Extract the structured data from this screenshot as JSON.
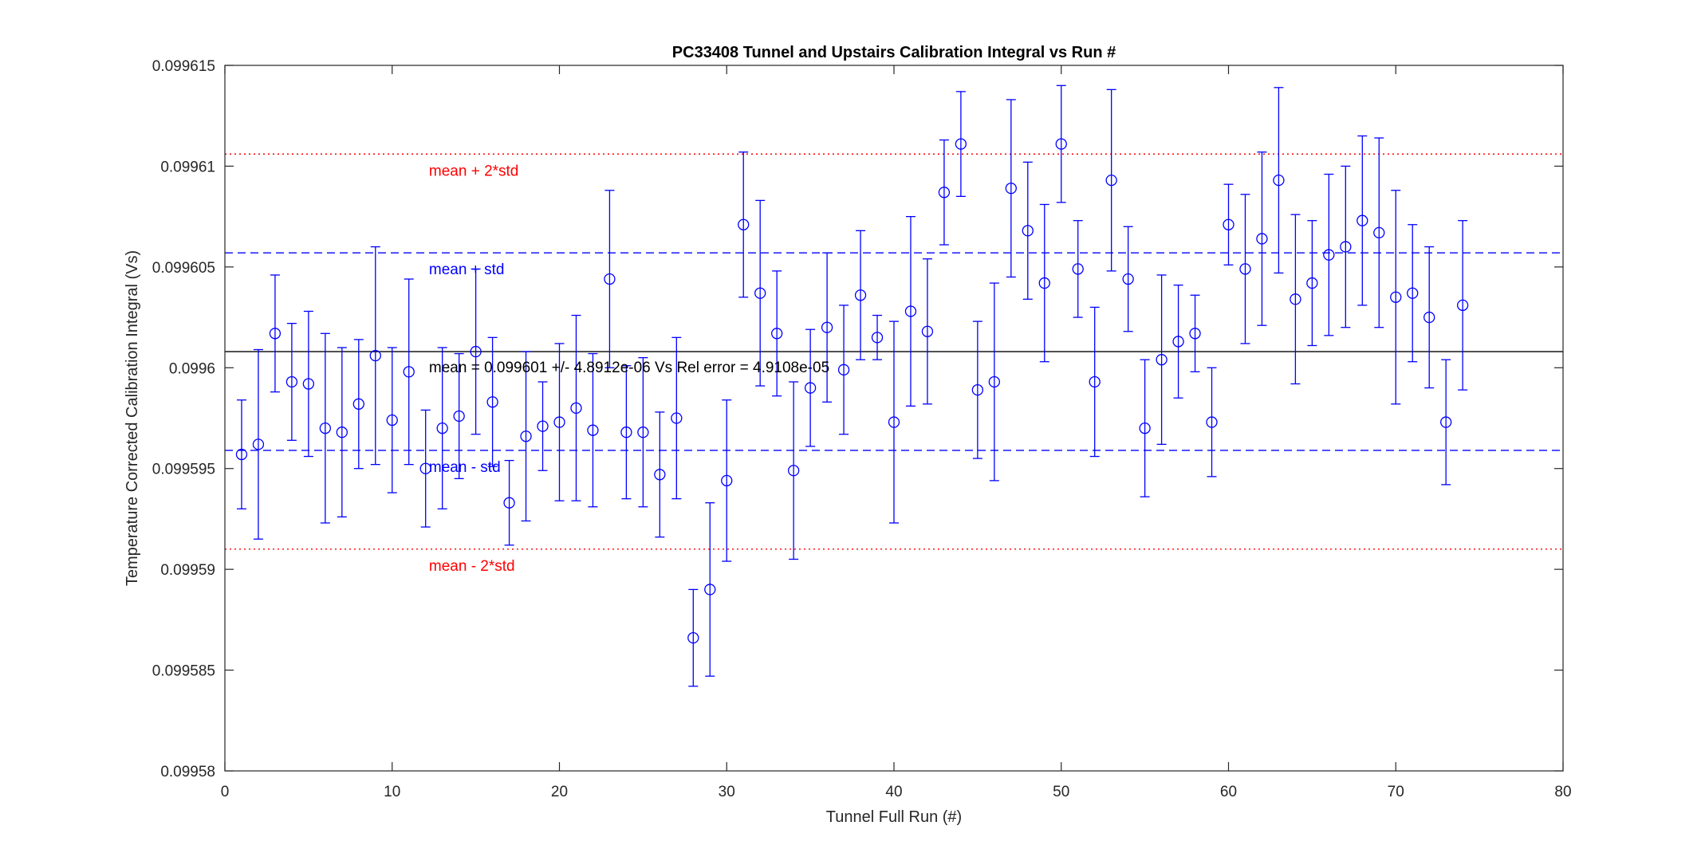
{
  "chart_data": {
    "type": "scatter",
    "title": "PC33408 Tunnel and Upstairs Calibration Integral vs Run #",
    "xlabel": "Tunnel Full Run (#)",
    "ylabel": "Temperature Corrected Calibration Integral (Vs)",
    "xlim": [
      0,
      80
    ],
    "ylim": [
      0.09958,
      0.099615
    ],
    "xticks": [
      0,
      10,
      20,
      30,
      40,
      50,
      60,
      70,
      80
    ],
    "xtick_labels": [
      "0",
      "10",
      "20",
      "30",
      "40",
      "50",
      "60",
      "70",
      "80"
    ],
    "yticks": [
      0.09958,
      0.099585,
      0.09959,
      0.099595,
      0.0996,
      0.099605,
      0.09961,
      0.099615
    ],
    "ytick_labels": [
      "0.09958",
      "0.099585",
      "0.09959",
      "0.099595",
      "0.0996",
      "0.099605",
      "0.09961",
      "0.099615"
    ],
    "grid": false,
    "box": true,
    "series": [
      {
        "marker": "circle",
        "style": "errorbar",
        "color": "#0000ff",
        "x": [
          1,
          2,
          3,
          4,
          5,
          6,
          7,
          8,
          9,
          10,
          11,
          12,
          13,
          14,
          15,
          16,
          17,
          18,
          19,
          20,
          21,
          22,
          23,
          24,
          25,
          26,
          27,
          28,
          29,
          30,
          31,
          32,
          33,
          34,
          35,
          36,
          37,
          38,
          39,
          40,
          41,
          42,
          43,
          44,
          45,
          46,
          47,
          48,
          49,
          50,
          51,
          52,
          53,
          54,
          55,
          56,
          57,
          58,
          59,
          60,
          61,
          62,
          63,
          64,
          65,
          66,
          67,
          68,
          69,
          70,
          71,
          72,
          73,
          74
        ],
        "y": [
          0.0995957,
          0.0995962,
          0.0996017,
          0.0995993,
          0.0995992,
          0.099597,
          0.0995968,
          0.0995982,
          0.0996006,
          0.0995974,
          0.0995998,
          0.099595,
          0.099597,
          0.0995976,
          0.0996008,
          0.0995983,
          0.0995933,
          0.0995966,
          0.0995971,
          0.0995973,
          0.099598,
          0.0995969,
          0.0996044,
          0.0995968,
          0.0995968,
          0.0995947,
          0.0995975,
          0.0995866,
          0.099589,
          0.0995944,
          0.0996071,
          0.0996037,
          0.0996017,
          0.0995949,
          0.099599,
          0.099602,
          0.0995999,
          0.0996036,
          0.0996015,
          0.0995973,
          0.0996028,
          0.0996018,
          0.0996087,
          0.0996111,
          0.0995989,
          0.0995993,
          0.0996089,
          0.0996068,
          0.0996042,
          0.0996111,
          0.0996049,
          0.0995993,
          0.0996093,
          0.0996044,
          0.099597,
          0.0996004,
          0.0996013,
          0.0996017,
          0.0995973,
          0.0996071,
          0.0996049,
          0.0996064,
          0.0996093,
          0.0996034,
          0.0996042,
          0.0996056,
          0.099606,
          0.0996073,
          0.0996067,
          0.0996035,
          0.0996037,
          0.0996025,
          0.0995973,
          0.0996031
        ],
        "err": [
          2.7e-06,
          4.7e-06,
          2.9e-06,
          2.9e-06,
          3.6e-06,
          4.7e-06,
          4.2e-06,
          3.2e-06,
          5.4e-06,
          3.6e-06,
          4.6e-06,
          2.9e-06,
          4e-06,
          3.1e-06,
          4.1e-06,
          3.2e-06,
          2.1e-06,
          4.2e-06,
          2.2e-06,
          3.9e-06,
          4.6e-06,
          3.8e-06,
          4.4e-06,
          3.3e-06,
          3.7e-06,
          3.1e-06,
          4e-06,
          2.4e-06,
          4.3e-06,
          4e-06,
          3.6e-06,
          4.6e-06,
          3.1e-06,
          4.4e-06,
          2.9e-06,
          3.7e-06,
          3.2e-06,
          3.2e-06,
          1.1e-06,
          5e-06,
          4.7e-06,
          3.6e-06,
          2.6e-06,
          2.6e-06,
          3.4e-06,
          4.9e-06,
          4.4e-06,
          3.4e-06,
          3.9e-06,
          2.9e-06,
          2.4e-06,
          3.7e-06,
          4.5e-06,
          2.6e-06,
          3.4e-06,
          4.2e-06,
          2.8e-06,
          1.9e-06,
          2.7e-06,
          2e-06,
          3.7e-06,
          4.3e-06,
          4.6e-06,
          4.2e-06,
          3.1e-06,
          4e-06,
          4e-06,
          4.2e-06,
          4.7e-06,
          5.3e-06,
          3.4e-06,
          3.5e-06,
          3.1e-06,
          4.2e-06
        ]
      }
    ],
    "hlines": [
      {
        "y": 0.0996106,
        "style": "dotted",
        "color": "#ff0000",
        "label": "mean + 2*std"
      },
      {
        "y": 0.0996057,
        "style": "dashed",
        "color": "#0000ff",
        "label": "mean + std"
      },
      {
        "y": 0.0996008,
        "style": "solid",
        "color": "#000000",
        "label": "mean = 0.099601 +/- 4.8912e-06 Vs Rel error = 4.9108e-05"
      },
      {
        "y": 0.0995959,
        "style": "dashed",
        "color": "#0000ff",
        "label": "mean - std"
      },
      {
        "y": 0.099591,
        "style": "dotted",
        "color": "#ff0000",
        "label": "mean - 2*std"
      }
    ]
  }
}
